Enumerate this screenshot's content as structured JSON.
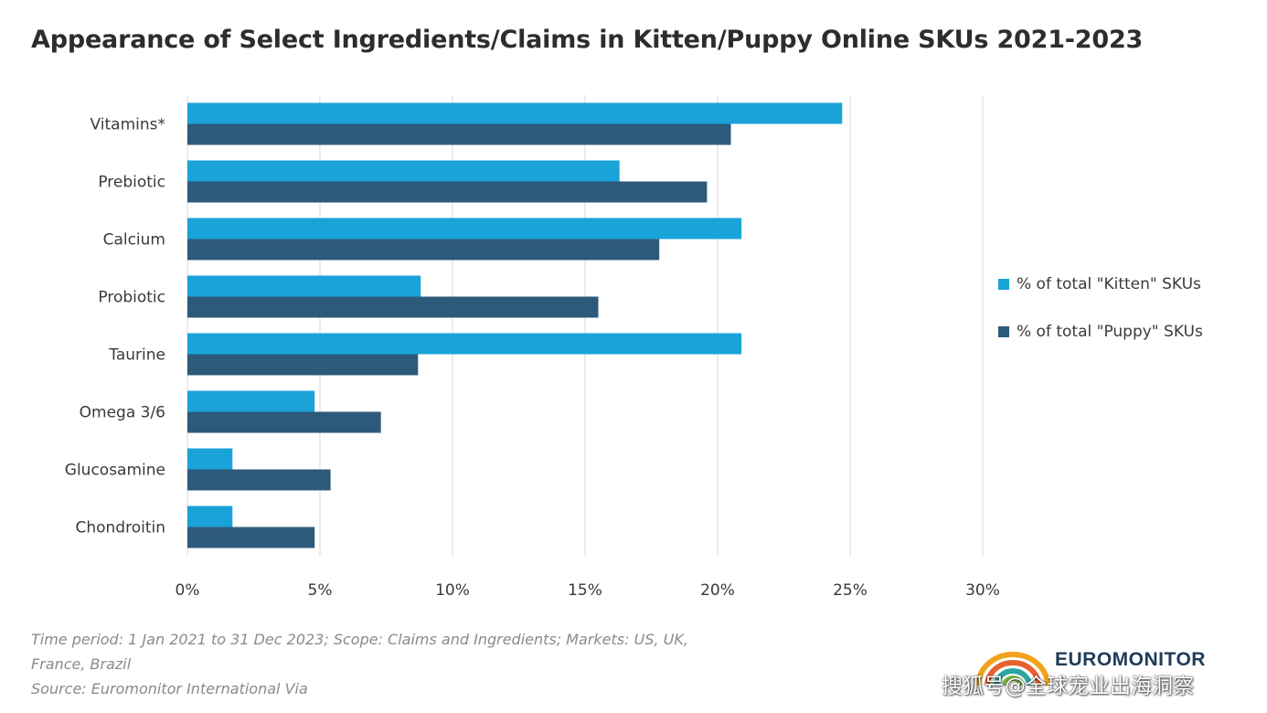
{
  "title": "Appearance of Select Ingredients/Claims in Kitten/Puppy Online SKUs 2021-2023",
  "chart_data": {
    "type": "bar",
    "orientation": "horizontal",
    "categories": [
      "Vitamins*",
      "Prebiotic",
      "Calcium",
      "Probiotic",
      "Taurine",
      "Omega 3/6",
      "Glucosamine",
      "Chondroitin"
    ],
    "series": [
      {
        "name": "% of total \"Kitten\" SKUs",
        "color": "#1aa3d8",
        "values": [
          24.7,
          16.3,
          20.9,
          8.8,
          20.9,
          4.8,
          1.7,
          1.7
        ]
      },
      {
        "name": "% of total \"Puppy\" SKUs",
        "color": "#2d5a7a",
        "values": [
          20.5,
          19.6,
          17.8,
          15.5,
          8.7,
          7.3,
          5.4,
          4.8
        ]
      }
    ],
    "xlim": [
      0,
      30
    ],
    "x_ticks": [
      "0%",
      "5%",
      "10%",
      "15%",
      "20%",
      "25%",
      "30%"
    ],
    "grid": true,
    "legend_position": "right"
  },
  "footnotes": {
    "line1": "Time period: 1 Jan 2021 to 31 Dec 2023; Scope: Claims and Ingredients; Markets: US, UK,",
    "line2": "France, Brazil",
    "line3": "Source: Euromonitor International Via"
  },
  "brand": {
    "name": "EUROMONITOR",
    "logo_colors": [
      "#f2a31b",
      "#e8602c",
      "#2aa6a0",
      "#7ab743"
    ]
  },
  "watermark": "搜狐号@全球宠业出海洞察"
}
